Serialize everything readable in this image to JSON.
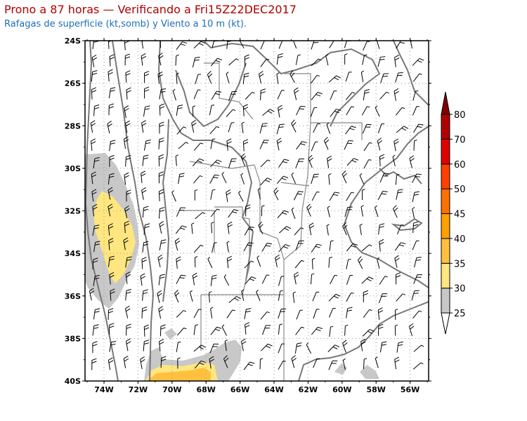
{
  "header": {
    "title": "Prono a 87 horas — Verificando a Fri15Z22DEC2017",
    "subtitle": "Rafagas de superficie (kt,somb) y Viento a 10 m (kt)."
  },
  "map": {
    "lat_labels": [
      "24S",
      "26S",
      "28S",
      "30S",
      "32S",
      "34S",
      "36S",
      "38S",
      "40S"
    ],
    "lon_labels": [
      "74W",
      "72W",
      "70W",
      "68W",
      "66W",
      "64W",
      "62W",
      "60W",
      "58W",
      "56W"
    ]
  },
  "colorbar": {
    "levels": [
      "25",
      "30",
      "35",
      "40",
      "45",
      "50",
      "60",
      "70",
      "80"
    ],
    "colors": [
      "#c8c8c8",
      "#ffe680",
      "#ffc040",
      "#ffa000",
      "#ff7000",
      "#ff4000",
      "#e00000",
      "#b00000",
      "#800000"
    ]
  }
}
